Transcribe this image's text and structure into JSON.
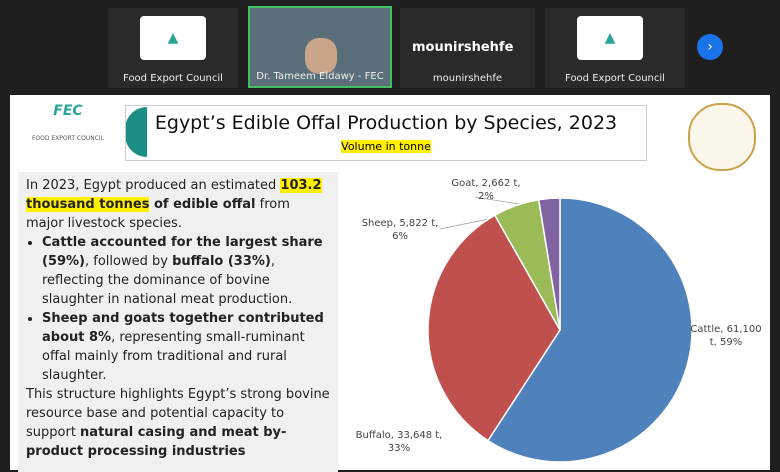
{
  "participants": [
    {
      "name": "Food Export Council"
    },
    {
      "name": "Dr. Tameem Eldawy - FEC"
    },
    {
      "title": "mounirshehfe",
      "name": "mounirshehfe"
    },
    {
      "name": "Food Export Council"
    }
  ],
  "slide": {
    "logo": {
      "abbr": "FEC",
      "org": "FOOD EXPORT COUNCIL"
    },
    "title": "Egypt’s Edible Offal Production by Species, 2023",
    "subtitle": "Volume in tonne",
    "intro": [
      "In 2023, Egypt produced an estimated ",
      "103.2 thousand tonnes",
      " of edible offal",
      " from major livestock species."
    ],
    "bullets": [
      [
        "Cattle accounted for the largest share (59%)",
        ", followed by ",
        "buffalo (33%)",
        ", reflecting the dominance of bovine slaughter in national meat production."
      ],
      [
        "Sheep and goats together contributed about 8%",
        ", representing small-ruminant offal mainly from traditional and rural slaughter."
      ]
    ],
    "closing": [
      "This structure highlights Egypt’s strong bovine resource base and potential capacity to support ",
      "natural casing and meat by-product processing industries"
    ]
  },
  "chart_data": {
    "type": "pie",
    "values": [
      61100,
      33648,
      5822,
      2662
    ],
    "value_labels": [
      "Cattle, 61,100 t, 59%",
      "Buffalo, 33,648 t, 33%",
      "Sheep, 5,822 t, 6%",
      "Goat, 2,662 t, 2%"
    ],
    "colors": [
      "#4f81bd",
      "#c0504d",
      "#9bbb59",
      "#8064a2"
    ]
  }
}
